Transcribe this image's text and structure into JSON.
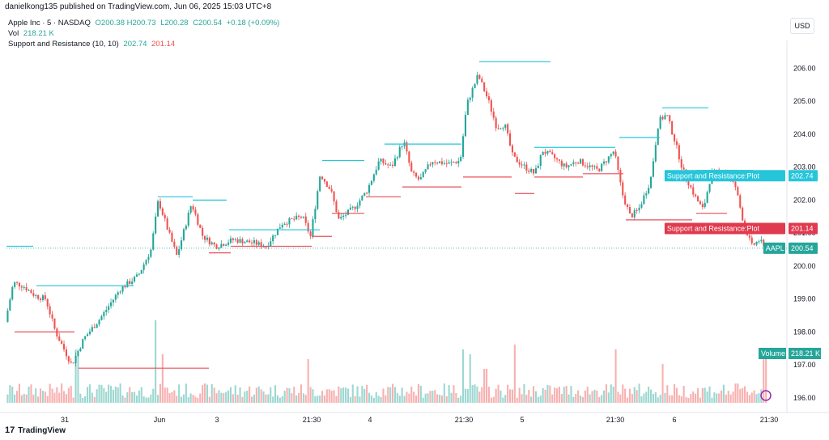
{
  "header": {
    "publish_line": "danielkong135 published on TradingView.com, Jun 06, 2025 15:03 UTC+8"
  },
  "legend": {
    "symbol": "Apple Inc · 5 · NASDAQ",
    "o": "O200.38",
    "h": "H200.73",
    "l": "L200.28",
    "c": "C200.54",
    "chg": "+0.18 (+0.09%)",
    "vol_label": "Vol",
    "vol_value": "218.21 K",
    "sr_label": "Support and Resistance (10, 10)",
    "sr_res": "202.74",
    "sr_sup": "201.14"
  },
  "currency_button": "USD",
  "brand": {
    "name": "TradingView",
    "logo": "17"
  },
  "colors": {
    "up": "#26a69a",
    "down": "#ef5350",
    "resistance": "#26c6da",
    "support": "#e8505b"
  },
  "chart_data": {
    "type": "candlestick",
    "ylim": [
      195.8,
      206.6
    ],
    "y_ticks": [
      "206.00",
      "205.00",
      "204.00",
      "203.00",
      "202.00",
      "201.00",
      "200.00",
      "199.00",
      "198.00",
      "197.00",
      "196.00"
    ],
    "x_ticks": [
      "31",
      "Jun",
      "3",
      "21:30",
      "4",
      "21:30",
      "5",
      "21:30",
      "6",
      "21:30"
    ],
    "price_tags": [
      {
        "label": "Support and Resistance:Plot",
        "value": "202.74",
        "kind": "res"
      },
      {
        "label": "Support and Resistance:Plot",
        "value": "201.14",
        "kind": "sup"
      },
      {
        "label": "AAPL",
        "value": "200.54",
        "kind": "last"
      }
    ],
    "volume_tag": {
      "label": "Volume",
      "value": "218.21 K"
    },
    "anchors": [
      [
        0,
        200.5
      ],
      [
        8,
        198.3
      ],
      [
        18,
        199.5
      ],
      [
        30,
        199.4
      ],
      [
        45,
        199.1
      ],
      [
        58,
        199.0
      ],
      [
        70,
        198.0
      ],
      [
        90,
        197.0
      ],
      [
        105,
        197.8
      ],
      [
        125,
        198.4
      ],
      [
        150,
        199.3
      ],
      [
        172,
        199.7
      ],
      [
        188,
        200.5
      ],
      [
        197,
        202.0
      ],
      [
        210,
        201.0
      ],
      [
        220,
        200.3
      ],
      [
        238,
        201.9
      ],
      [
        252,
        200.9
      ],
      [
        268,
        200.6
      ],
      [
        290,
        200.8
      ],
      [
        315,
        200.7
      ],
      [
        330,
        200.6
      ],
      [
        350,
        201.3
      ],
      [
        375,
        201.5
      ],
      [
        385,
        200.9
      ],
      [
        397,
        202.8
      ],
      [
        410,
        202.3
      ],
      [
        420,
        201.4
      ],
      [
        440,
        201.8
      ],
      [
        455,
        202.3
      ],
      [
        470,
        203.2
      ],
      [
        485,
        203.0
      ],
      [
        500,
        203.8
      ],
      [
        510,
        202.8
      ],
      [
        520,
        202.6
      ],
      [
        535,
        203.2
      ],
      [
        555,
        203.1
      ],
      [
        570,
        203.2
      ],
      [
        578,
        204.9
      ],
      [
        592,
        205.8
      ],
      [
        605,
        205.0
      ],
      [
        615,
        204.2
      ],
      [
        625,
        204.3
      ],
      [
        635,
        203.3
      ],
      [
        650,
        203.0
      ],
      [
        662,
        202.8
      ],
      [
        672,
        203.5
      ],
      [
        685,
        203.3
      ],
      [
        700,
        203.0
      ],
      [
        715,
        203.2
      ],
      [
        740,
        202.9
      ],
      [
        760,
        203.5
      ],
      [
        770,
        202.2
      ],
      [
        780,
        201.5
      ],
      [
        790,
        201.7
      ],
      [
        805,
        202.6
      ],
      [
        815,
        204.4
      ],
      [
        825,
        204.6
      ],
      [
        835,
        203.8
      ],
      [
        845,
        202.9
      ],
      [
        860,
        202.1
      ],
      [
        870,
        201.7
      ],
      [
        880,
        202.8
      ],
      [
        895,
        202.9
      ],
      [
        910,
        202.4
      ],
      [
        920,
        201.3
      ],
      [
        930,
        200.6
      ],
      [
        940,
        200.8
      ],
      [
        945,
        200.54
      ]
    ],
    "resistance_segments": [
      [
        8,
        41,
        200.6
      ],
      [
        45,
        165,
        199.4
      ],
      [
        195,
        238,
        202.1
      ],
      [
        238,
        280,
        202.0
      ],
      [
        283,
        395,
        201.1
      ],
      [
        398,
        450,
        203.2
      ],
      [
        475,
        570,
        203.7
      ],
      [
        592,
        680,
        206.2
      ],
      [
        660,
        760,
        203.6
      ],
      [
        765,
        815,
        203.9
      ],
      [
        818,
        875,
        204.8
      ],
      [
        860,
        930,
        202.9
      ]
    ],
    "support_segments": [
      [
        18,
        92,
        198.0
      ],
      [
        97,
        258,
        196.9
      ],
      [
        258,
        285,
        200.4
      ],
      [
        285,
        385,
        200.6
      ],
      [
        385,
        410,
        200.9
      ],
      [
        410,
        450,
        201.6
      ],
      [
        452,
        495,
        202.1
      ],
      [
        497,
        570,
        202.4
      ],
      [
        572,
        632,
        202.7
      ],
      [
        636,
        660,
        202.2
      ],
      [
        660,
        720,
        202.7
      ],
      [
        720,
        770,
        202.8
      ],
      [
        773,
        855,
        201.4
      ],
      [
        860,
        898,
        201.6
      ],
      [
        900,
        940,
        201.0
      ]
    ],
    "volume_spikes": [
      [
        95,
        0.55
      ],
      [
        193,
        0.85
      ],
      [
        200,
        0.5
      ],
      [
        380,
        0.45
      ],
      [
        572,
        0.55
      ],
      [
        580,
        0.5
      ],
      [
        600,
        0.35
      ],
      [
        636,
        0.6
      ],
      [
        760,
        0.55
      ],
      [
        818,
        0.4
      ],
      [
        945,
        0.5
      ]
    ]
  }
}
